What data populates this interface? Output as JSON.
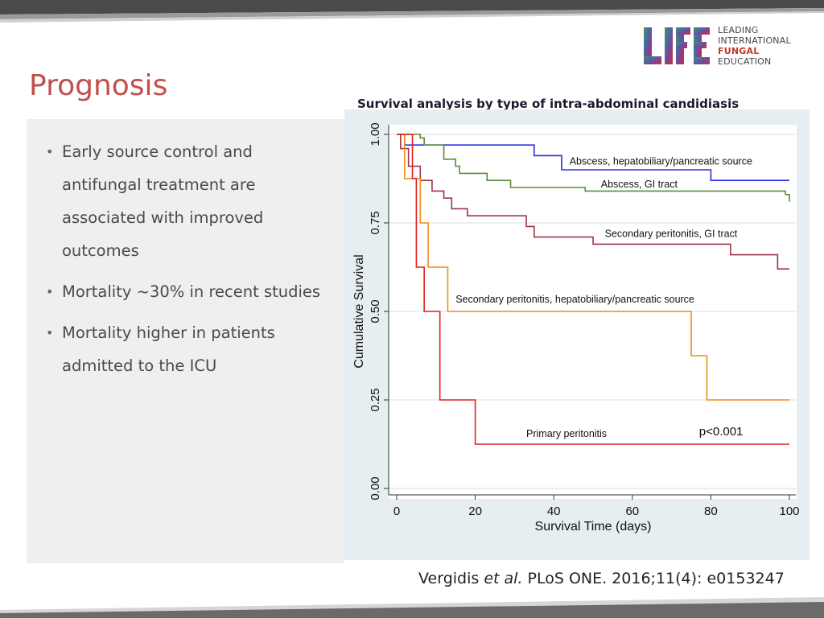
{
  "header": {
    "title": "Prognosis",
    "logo": {
      "mark_text": "LIFE",
      "lines": [
        "LEADING",
        "INTERNATIONAL",
        "FUNGAL",
        "EDUCATION"
      ]
    }
  },
  "bullets": [
    "Early source control and antifungal treatment are associated with improved outcomes",
    "Mortality ~30% in recent studies",
    "Mortality higher in patients admitted to the ICU"
  ],
  "citation": {
    "authors": "Vergidis",
    "etal": "et al.",
    "rest": "PLoS ONE. 2016;11(4): e0153247"
  },
  "chart_data": {
    "type": "line",
    "title": "Survival analysis by type of intra-abdominal candidiasis",
    "xlabel": "Survival Time (days)",
    "ylabel": "Cumulative Survival",
    "xlim": [
      0,
      100
    ],
    "ylim": [
      0,
      1
    ],
    "x_ticks": [
      "0",
      "20",
      "40",
      "60",
      "80",
      "100"
    ],
    "y_ticks": [
      "0.00",
      "0.25",
      "0.50",
      "0.75",
      "1.00"
    ],
    "grid": true,
    "annotation": "p<0.001",
    "series": [
      {
        "name": "Abscess, hepatobiliary/pancreatic source",
        "color": "#2c2ce0",
        "points": [
          [
            0,
            1
          ],
          [
            2,
            0.97
          ],
          [
            35,
            0.94
          ],
          [
            42,
            0.9
          ],
          [
            80,
            0.87
          ],
          [
            100,
            0.87
          ]
        ]
      },
      {
        "name": "Abscess, GI tract",
        "color": "#5a8a3c",
        "points": [
          [
            0,
            1
          ],
          [
            6,
            0.99
          ],
          [
            7,
            0.97
          ],
          [
            12,
            0.93
          ],
          [
            15,
            0.91
          ],
          [
            16,
            0.89
          ],
          [
            23,
            0.87
          ],
          [
            29,
            0.85
          ],
          [
            48,
            0.84
          ],
          [
            99,
            0.83
          ],
          [
            100,
            0.81
          ]
        ]
      },
      {
        "name": "Secondary peritonitis, GI tract",
        "color": "#a03448",
        "points": [
          [
            0,
            1
          ],
          [
            1,
            0.96
          ],
          [
            3,
            0.91
          ],
          [
            6,
            0.87
          ],
          [
            9,
            0.84
          ],
          [
            12,
            0.82
          ],
          [
            14,
            0.79
          ],
          [
            18,
            0.77
          ],
          [
            33,
            0.74
          ],
          [
            35,
            0.71
          ],
          [
            50,
            0.69
          ],
          [
            85,
            0.66
          ],
          [
            97,
            0.62
          ],
          [
            100,
            0.62
          ]
        ]
      },
      {
        "name": "Secondary peritonitis, hepatobiliary/pancreatic source",
        "color": "#f08c1c",
        "points": [
          [
            0,
            1
          ],
          [
            2,
            0.875
          ],
          [
            6,
            0.75
          ],
          [
            8,
            0.625
          ],
          [
            13,
            0.5
          ],
          [
            75,
            0.375
          ],
          [
            79,
            0.25
          ],
          [
            100,
            0.25
          ]
        ]
      },
      {
        "name": "Primary peritonitis",
        "color": "#e02020",
        "points": [
          [
            0,
            1
          ],
          [
            4,
            0.875
          ],
          [
            5,
            0.625
          ],
          [
            7,
            0.5
          ],
          [
            11,
            0.25
          ],
          [
            20,
            0.125
          ],
          [
            100,
            0.125
          ]
        ]
      }
    ],
    "label_positions_data": [
      {
        "series": 0,
        "x": 44,
        "y": 0.915
      },
      {
        "series": 1,
        "x": 52,
        "y": 0.85
      },
      {
        "series": 2,
        "x": 53,
        "y": 0.71
      },
      {
        "series": 3,
        "x": 15,
        "y": 0.525
      },
      {
        "series": 4,
        "x": 33,
        "y": 0.145
      }
    ],
    "annotation_position_data": {
      "x": 77,
      "y": 0.15
    }
  }
}
